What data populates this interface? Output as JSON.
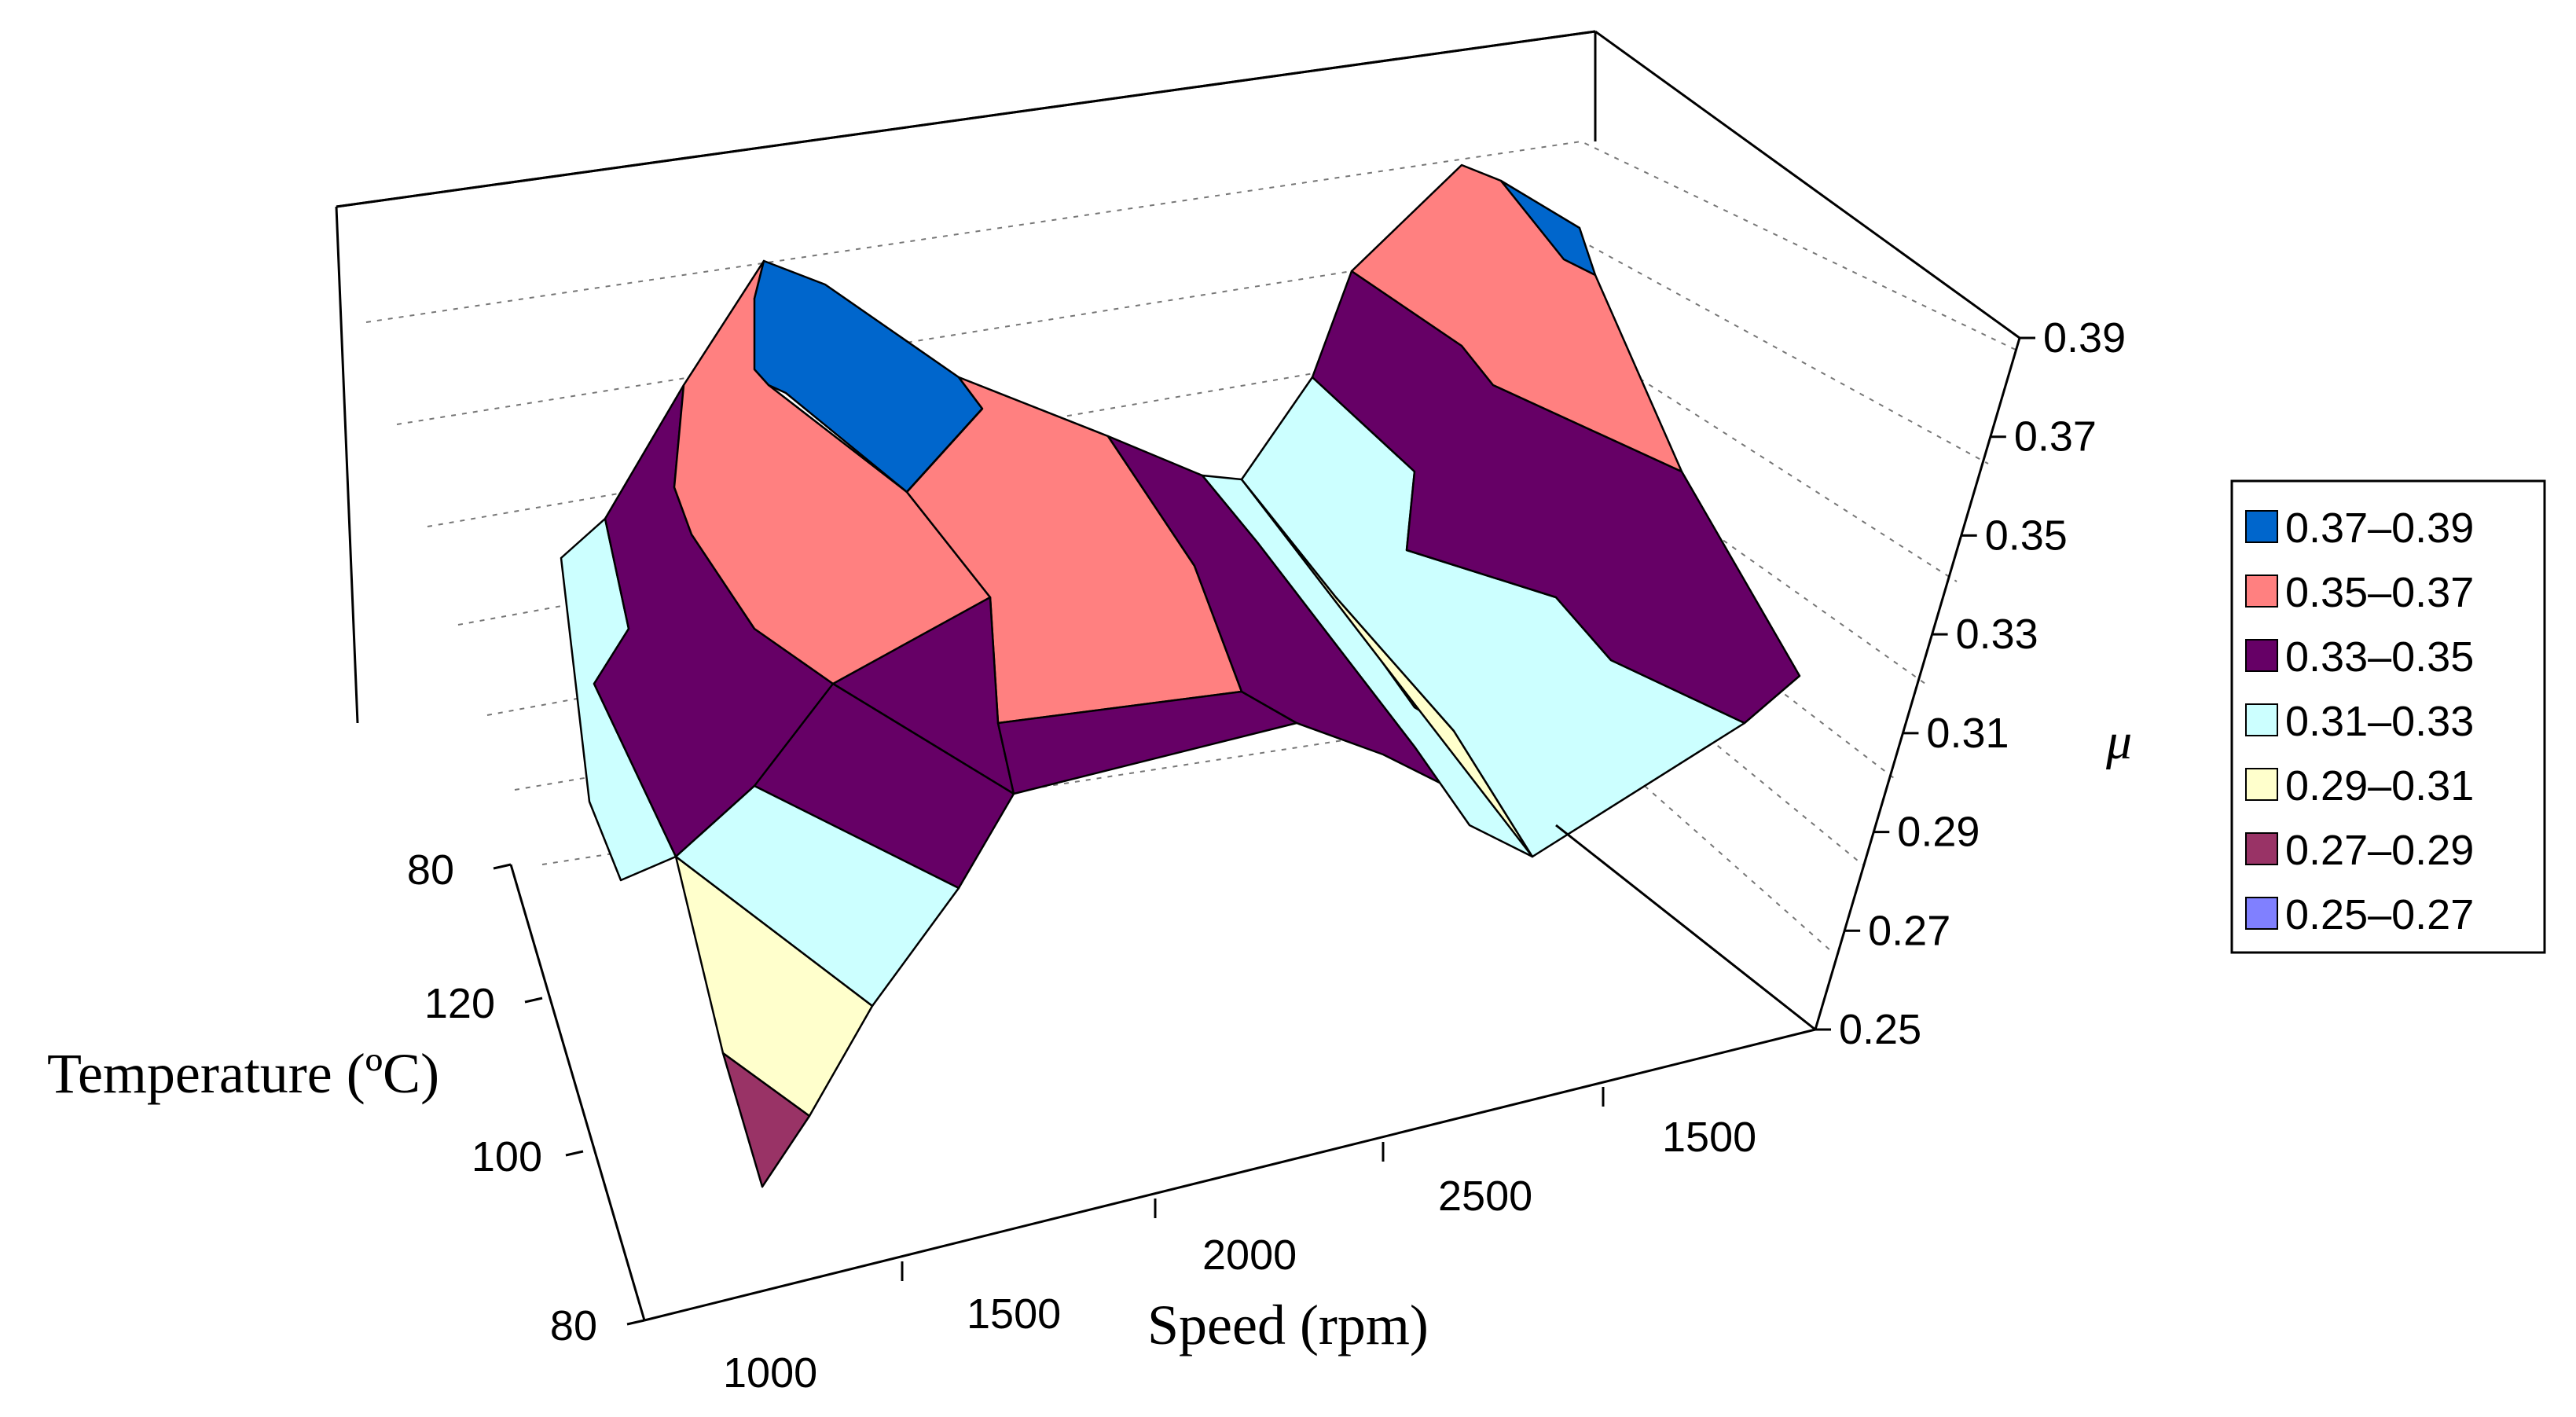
{
  "chart_data": {
    "type": "surface3d",
    "title": "",
    "xlabel": "Speed (rpm)",
    "ylabel": "Temperature (ºC)",
    "zlabel": "μ",
    "speed_ticks": [
      "1000",
      "1500",
      "2000",
      "2500",
      "1500"
    ],
    "temperature_ticks": [
      "80",
      "100",
      "120",
      "80"
    ],
    "mu_ticks": [
      "0.25",
      "0.27",
      "0.29",
      "0.31",
      "0.33",
      "0.35",
      "0.37",
      "0.39"
    ],
    "zlim": [
      0.25,
      0.39
    ],
    "legend": [
      {
        "label": "0.37–0.39",
        "color": "#0066cc"
      },
      {
        "label": "0.35–0.37",
        "color": "#ff8080"
      },
      {
        "label": "0.33–0.35",
        "color": "#660066"
      },
      {
        "label": "0.31–0.33",
        "color": "#ccffff"
      },
      {
        "label": "0.29–0.31",
        "color": "#ffffcc"
      },
      {
        "label": "0.27–0.29",
        "color": "#993366"
      },
      {
        "label": "0.25–0.27",
        "color": "#8080ff"
      }
    ]
  }
}
